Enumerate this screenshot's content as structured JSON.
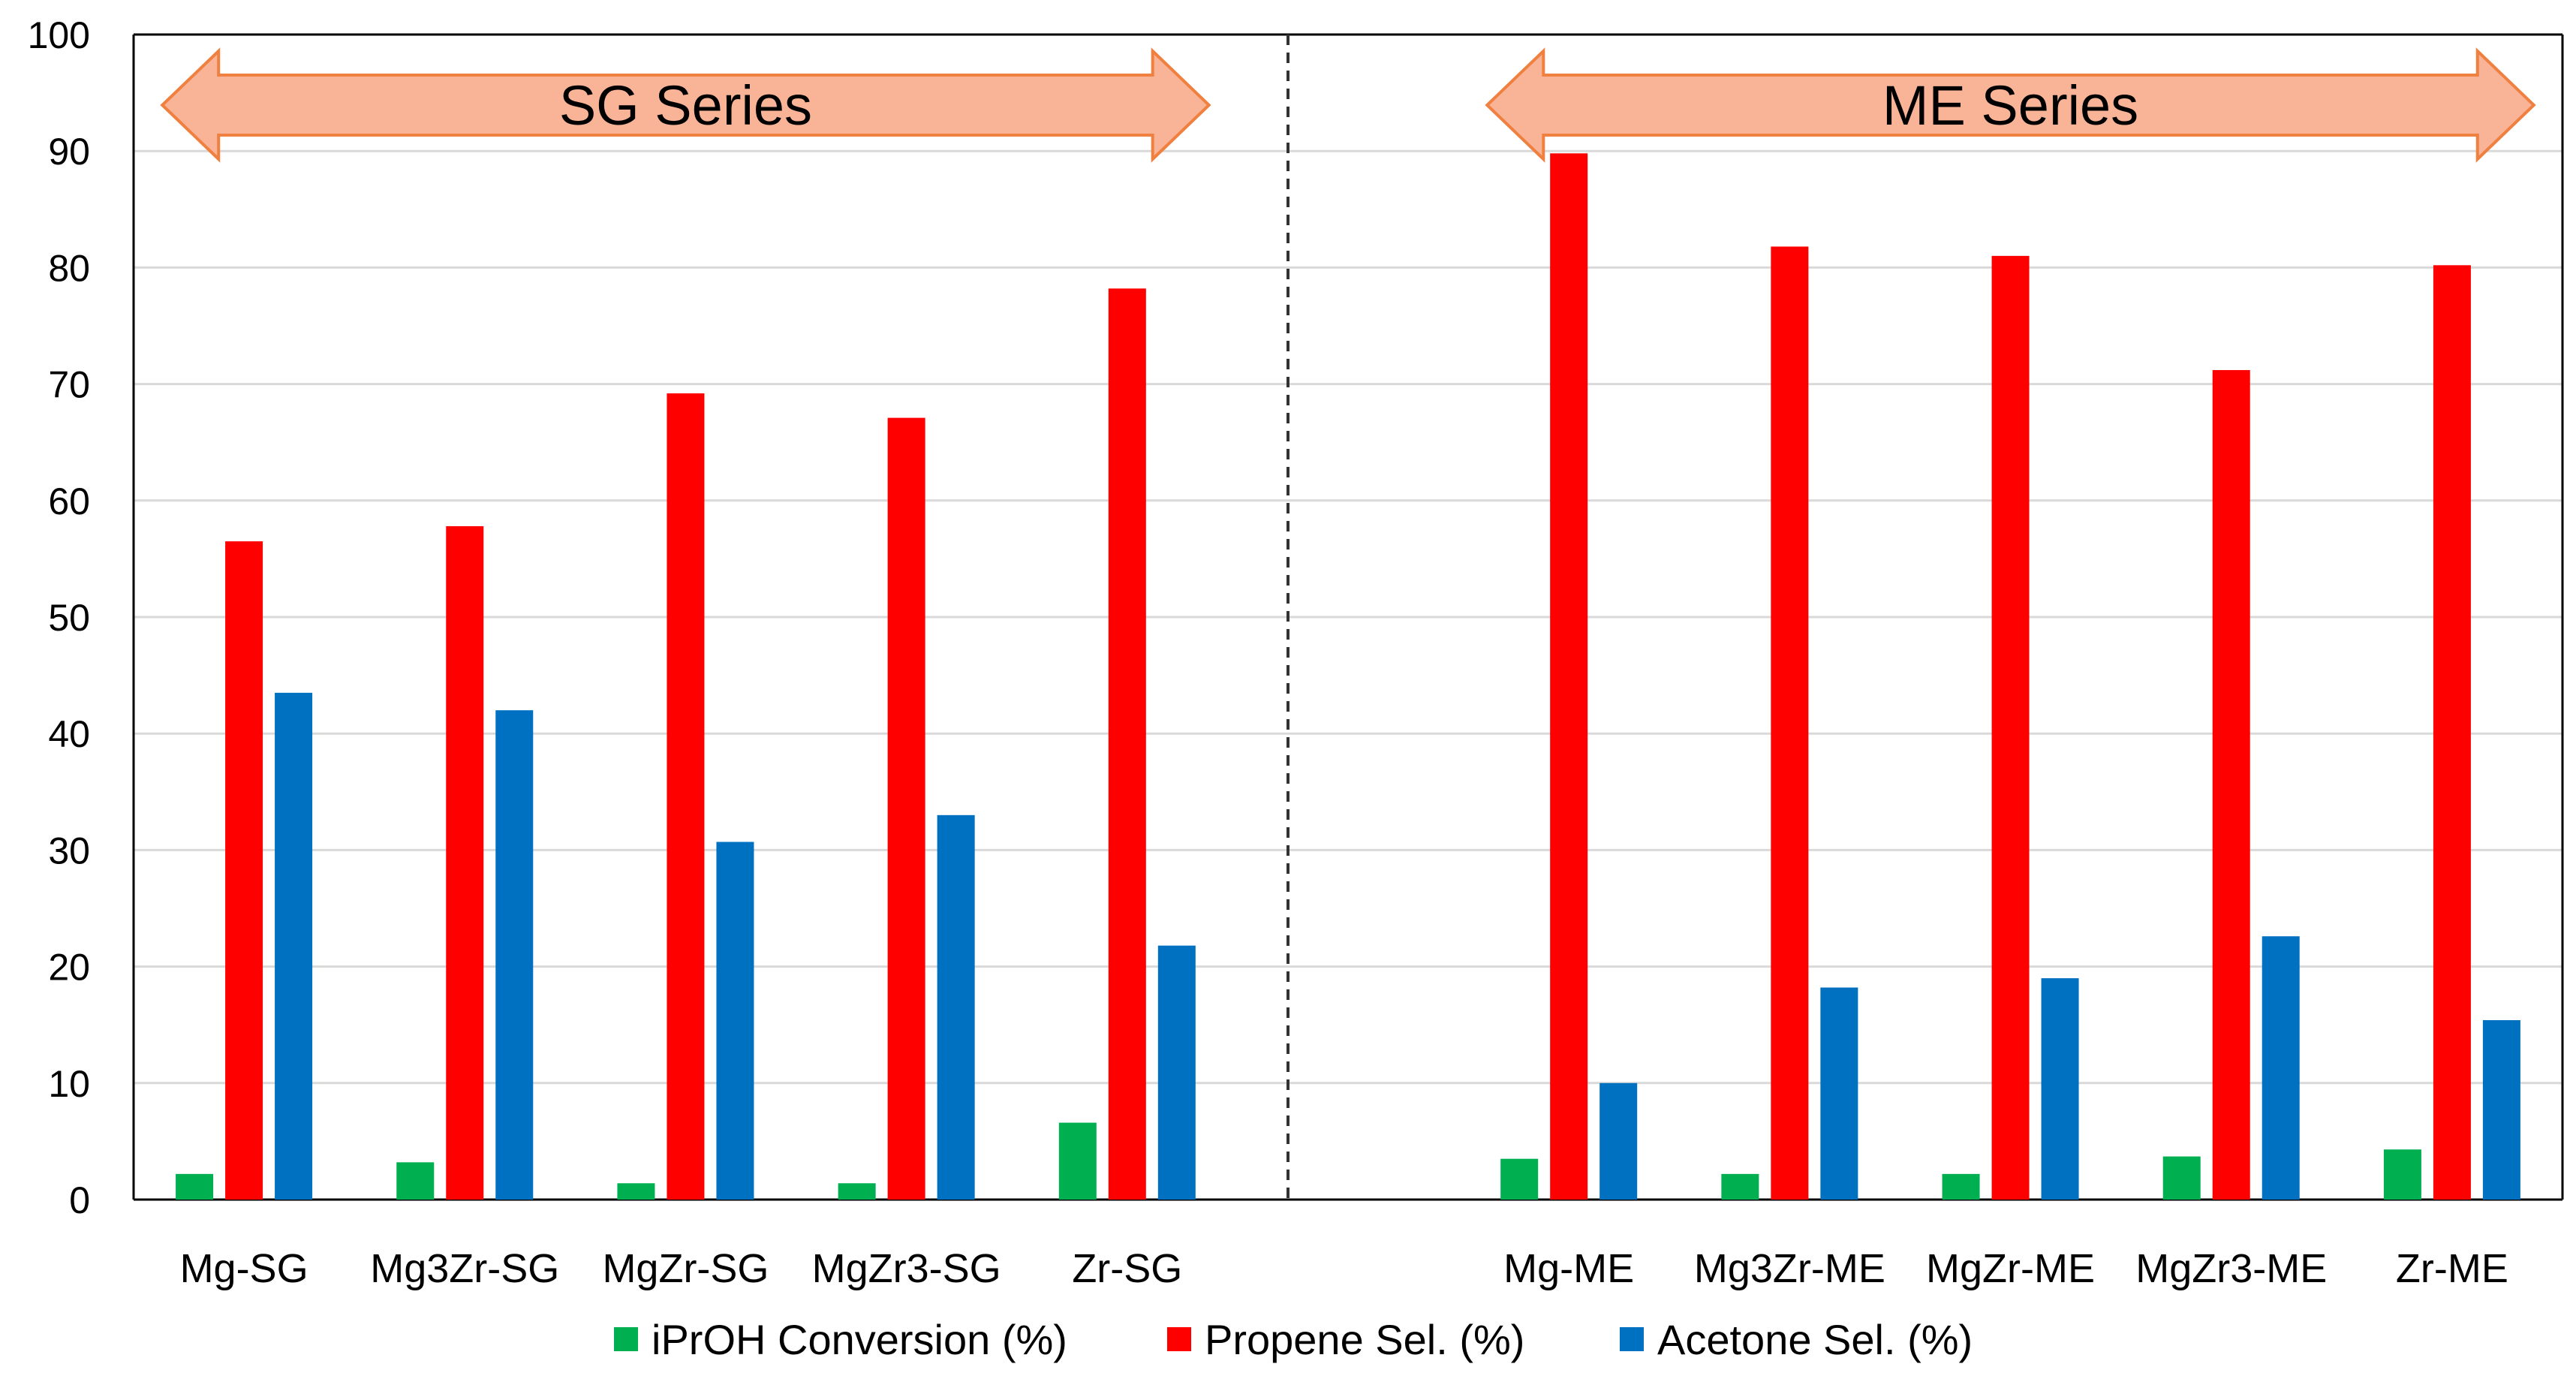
{
  "chart_data": {
    "type": "bar",
    "title": "",
    "xlabel": "",
    "ylabel": "",
    "ylim": [
      0,
      100
    ],
    "yticks": [
      0,
      10,
      20,
      30,
      40,
      50,
      60,
      70,
      80,
      90,
      100
    ],
    "grid": true,
    "legend_position": "bottom",
    "categories": [
      "Mg-SG",
      "Mg3Zr-SG",
      "MgZr-SG",
      "MgZr3-SG",
      "Zr-SG",
      "",
      "Mg-ME",
      "Mg3Zr-ME",
      "MgZr-ME",
      "MgZr3-ME",
      "Zr-ME"
    ],
    "series": [
      {
        "name": "iPrOH Conversion (%)",
        "color": "#00b050",
        "values": [
          2.2,
          3.2,
          1.4,
          1.4,
          6.6,
          null,
          3.5,
          2.2,
          2.2,
          3.7,
          4.3
        ]
      },
      {
        "name": "Propene Sel. (%)",
        "color": "#ff0000",
        "values": [
          56.5,
          57.8,
          69.2,
          67.1,
          78.2,
          null,
          89.8,
          81.8,
          81.0,
          71.2,
          80.2
        ]
      },
      {
        "name": "Acetone Sel. (%)",
        "color": "#0070c0",
        "values": [
          43.5,
          42.0,
          30.7,
          33.0,
          21.8,
          null,
          10.0,
          18.2,
          19.0,
          22.6,
          15.4
        ]
      }
    ],
    "annotations": [
      {
        "text": "SG Series",
        "from_category": "Mg-SG",
        "to_category": "Zr-SG"
      },
      {
        "text": "ME Series",
        "from_category": "Mg-ME",
        "to_category": "Zr-ME"
      }
    ],
    "separator": "dashed line between Zr-SG and Mg-ME"
  },
  "colors": {
    "arrow_fill": "#f9b498",
    "arrow_stroke": "#f08040",
    "gridline": "#d9d9d9",
    "axis": "#000000"
  }
}
